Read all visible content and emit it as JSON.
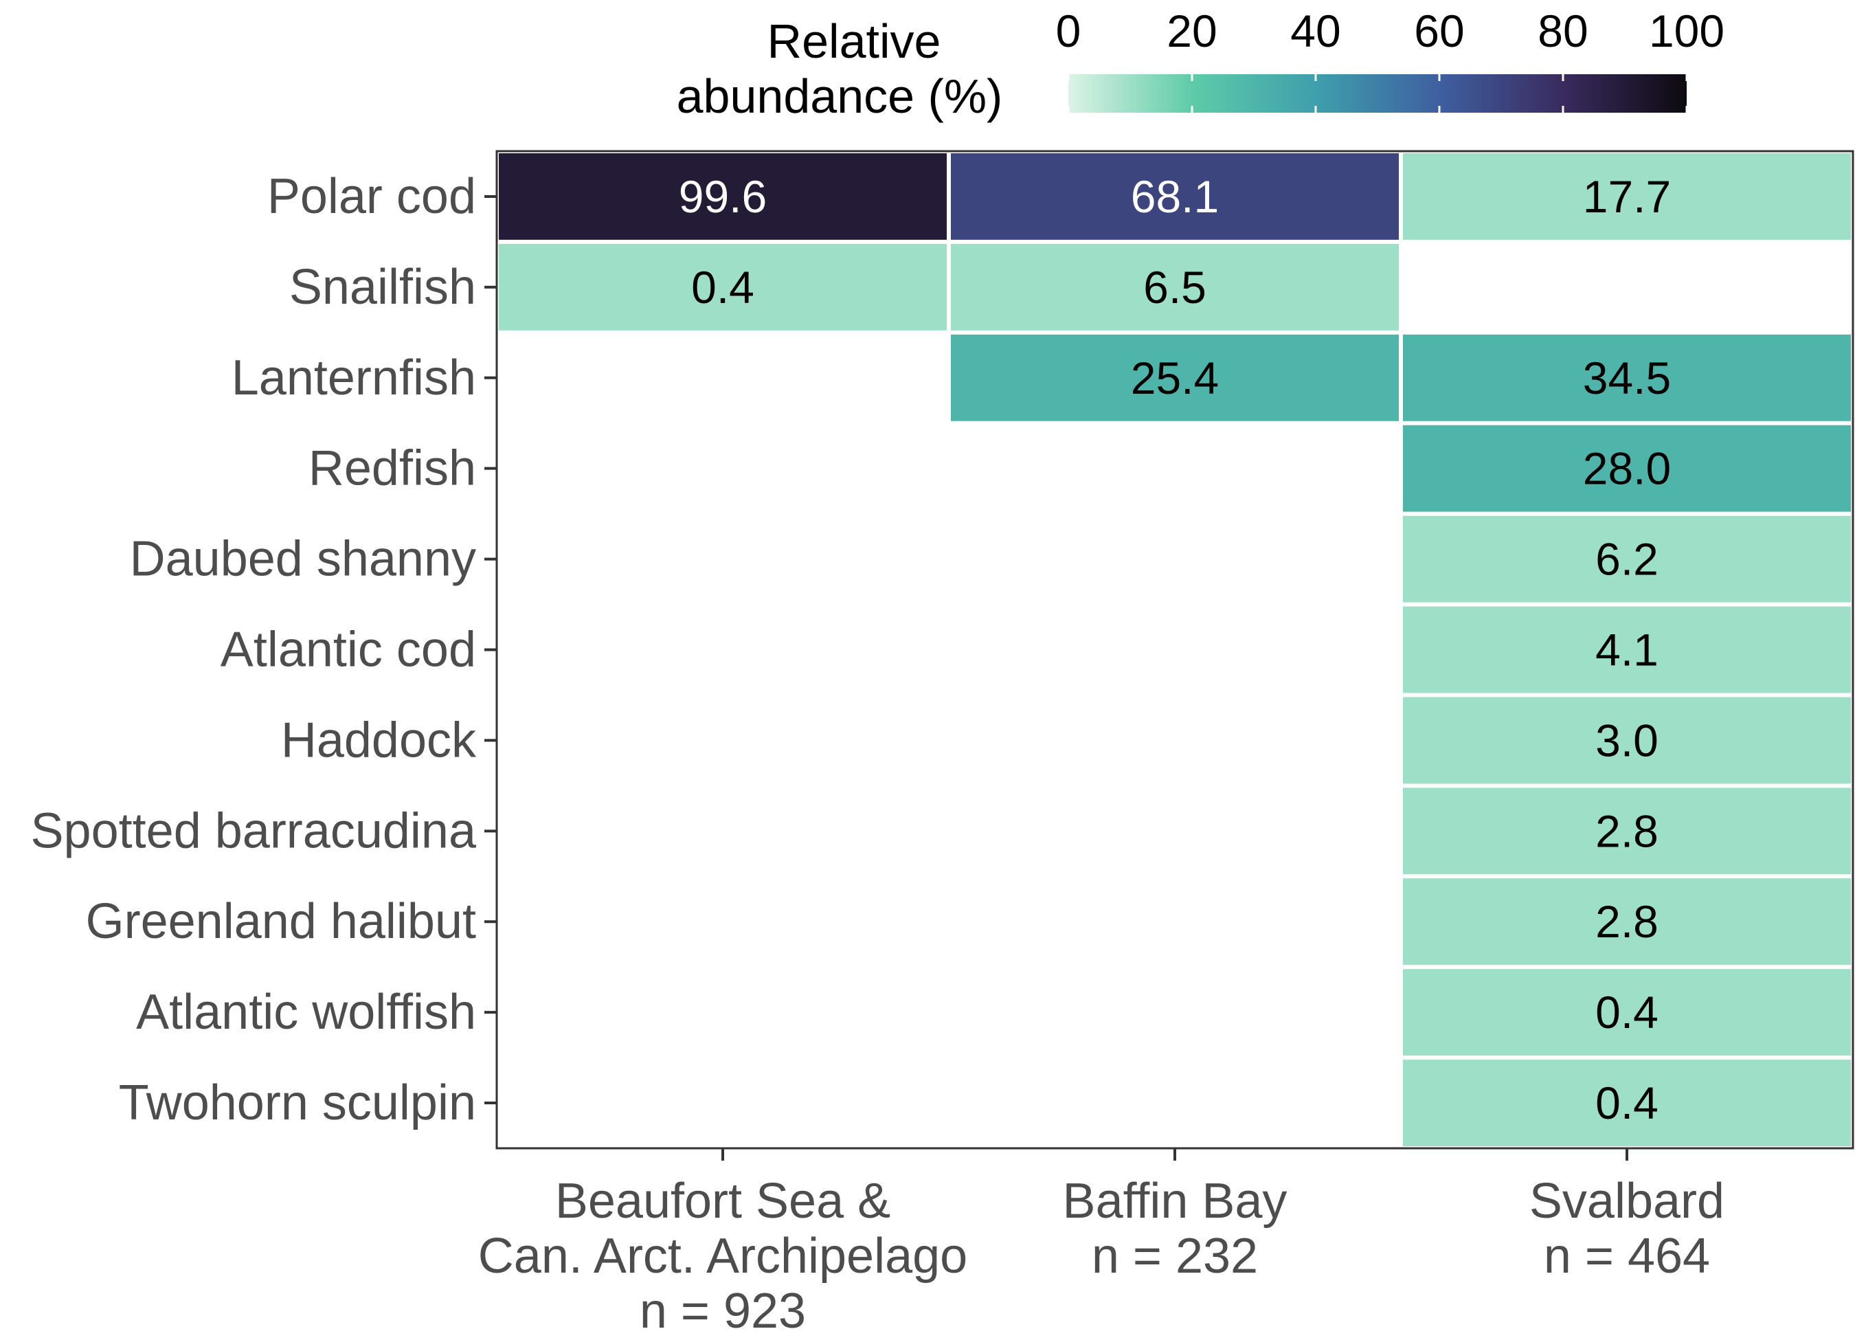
{
  "chart_data": {
    "type": "heatmap",
    "title": "",
    "xlabel": "",
    "ylabel": "",
    "x_categories": [
      [
        "Beaufort Sea &",
        "Can. Arct. Archipelago",
        "n = 923"
      ],
      [
        "Baffin Bay",
        "n = 232"
      ],
      [
        "Svalbard",
        "n = 464"
      ]
    ],
    "y_categories": [
      "Polar cod",
      "Snailfish",
      "Lanternfish",
      "Redfish",
      "Daubed shanny",
      "Atlantic cod",
      "Haddock",
      "Spotted barracudina",
      "Greenland halibut",
      "Atlantic wolffish",
      "Twohorn sculpin"
    ],
    "values": [
      [
        99.6,
        68.1,
        17.7
      ],
      [
        0.4,
        6.5,
        null
      ],
      [
        null,
        25.4,
        34.5
      ],
      [
        null,
        null,
        28.0
      ],
      [
        null,
        null,
        6.2
      ],
      [
        null,
        null,
        4.1
      ],
      [
        null,
        null,
        3.0
      ],
      [
        null,
        null,
        2.8
      ],
      [
        null,
        null,
        2.8
      ],
      [
        null,
        null,
        0.4
      ],
      [
        null,
        null,
        0.4
      ]
    ],
    "value_labels": [
      [
        "99.6",
        "68.1",
        "17.7"
      ],
      [
        "0.4",
        "6.5",
        ""
      ],
      [
        "",
        "25.4",
        "34.5"
      ],
      [
        "",
        "",
        "28.0"
      ],
      [
        "",
        "",
        "6.2"
      ],
      [
        "",
        "",
        "4.1"
      ],
      [
        "",
        "",
        "3.0"
      ],
      [
        "",
        "",
        "2.8"
      ],
      [
        "",
        "",
        "2.8"
      ],
      [
        "",
        "",
        "0.4"
      ],
      [
        "",
        "",
        "0.4"
      ]
    ],
    "legend": {
      "title_lines": [
        "Relative",
        "abundance (%)"
      ],
      "ticks": [
        0,
        20,
        40,
        60,
        80,
        100
      ],
      "range": [
        0,
        100
      ],
      "position": "top"
    },
    "color_scale": {
      "breaks": [
        0,
        20,
        40,
        60,
        80,
        100
      ],
      "colors": [
        "#ddf3e6",
        "#5ecba8",
        "#3f9fac",
        "#3f5fa0",
        "#3a2b5e",
        "#0d0a10"
      ],
      "dark_text_threshold": 50
    },
    "binned_fill": true,
    "grid": false
  }
}
